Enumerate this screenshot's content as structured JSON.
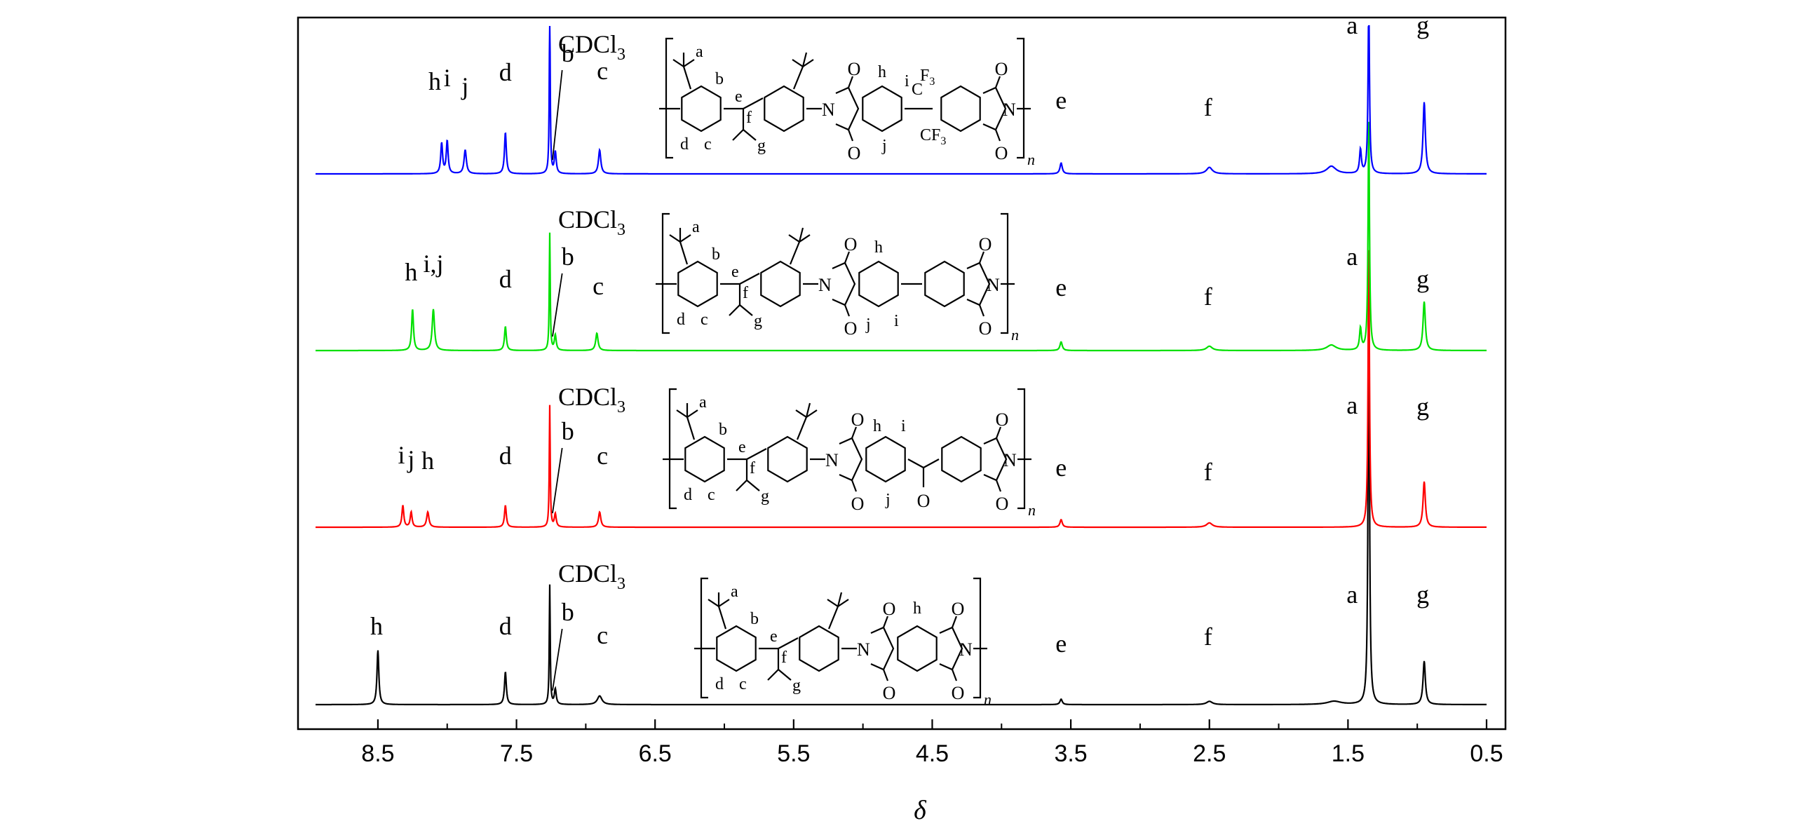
{
  "chart_data": {
    "type": "line",
    "xlabel": "δ",
    "xlim": [
      8.95,
      0.5
    ],
    "x_reversed": true,
    "xticks": [
      "8.5",
      "7.5",
      "6.5",
      "5.5",
      "4.5",
      "3.5",
      "2.5",
      "1.5",
      "0.5"
    ],
    "grid": false,
    "legend": "none",
    "series": [
      {
        "color": "#0000ff",
        "solvent_label": "CDCl",
        "solvent_sub": "3",
        "peaks": [
          {
            "x": 8.04,
            "h": 0.28,
            "w": 0.008
          },
          {
            "x": 8.0,
            "h": 0.3,
            "w": 0.008
          },
          {
            "x": 7.87,
            "h": 0.22,
            "w": 0.01
          },
          {
            "x": 7.58,
            "h": 0.38,
            "w": 0.008
          },
          {
            "x": 7.26,
            "h": 1.55,
            "w": 0.004
          },
          {
            "x": 7.22,
            "h": 0.2,
            "w": 0.008
          },
          {
            "x": 6.9,
            "h": 0.22,
            "w": 0.01
          },
          {
            "x": 3.57,
            "h": 0.1,
            "w": 0.01
          },
          {
            "x": 2.5,
            "h": 0.06,
            "w": 0.025
          },
          {
            "x": 1.62,
            "h": 0.07,
            "w": 0.04
          },
          {
            "x": 1.41,
            "h": 0.22,
            "w": 0.008
          },
          {
            "x": 1.35,
            "h": 1.6,
            "w": 0.006
          },
          {
            "x": 0.95,
            "h": 0.66,
            "w": 0.01
          }
        ],
        "labels": [
          {
            "t": "h",
            "x": 8.09,
            "dy": 75
          },
          {
            "t": "i",
            "x": 8.0,
            "dy": 80
          },
          {
            "t": "j",
            "x": 7.87,
            "dy": 68
          },
          {
            "t": "d",
            "x": 7.58,
            "dy": 88
          },
          {
            "t": "b",
            "x": 7.13,
            "dy": 115
          },
          {
            "t": "c",
            "x": 6.88,
            "dy": 90
          },
          {
            "t": "e",
            "x": 3.57,
            "dy": 48
          },
          {
            "t": "f",
            "x": 2.51,
            "dy": 38
          },
          {
            "t": "a",
            "x": 1.47,
            "dy": 155
          },
          {
            "t": "g",
            "x": 0.96,
            "dy": 155
          }
        ]
      },
      {
        "color": "#00e000",
        "solvent_label": "CDCl",
        "solvent_sub": "3",
        "peaks": [
          {
            "x": 8.25,
            "h": 0.38,
            "w": 0.008
          },
          {
            "x": 8.1,
            "h": 0.38,
            "w": 0.01
          },
          {
            "x": 7.58,
            "h": 0.22,
            "w": 0.008
          },
          {
            "x": 7.26,
            "h": 1.08,
            "w": 0.004
          },
          {
            "x": 7.22,
            "h": 0.14,
            "w": 0.008
          },
          {
            "x": 6.92,
            "h": 0.16,
            "w": 0.01
          },
          {
            "x": 3.57,
            "h": 0.08,
            "w": 0.01
          },
          {
            "x": 2.5,
            "h": 0.04,
            "w": 0.025
          },
          {
            "x": 1.62,
            "h": 0.05,
            "w": 0.04
          },
          {
            "x": 1.41,
            "h": 0.2,
            "w": 0.008
          },
          {
            "x": 1.35,
            "h": 2.1,
            "w": 0.006
          },
          {
            "x": 0.95,
            "h": 0.45,
            "w": 0.01
          }
        ],
        "labels": [
          {
            "t": "h",
            "x": 8.26,
            "dy": 55
          },
          {
            "t": "i,j",
            "x": 8.1,
            "dy": 67
          },
          {
            "t": "d",
            "x": 7.58,
            "dy": 45
          },
          {
            "t": "b",
            "x": 7.13,
            "dy": 77
          },
          {
            "t": "c",
            "x": 6.91,
            "dy": 35
          },
          {
            "t": "e",
            "x": 3.57,
            "dy": 33
          },
          {
            "t": "f",
            "x": 2.51,
            "dy": 20
          },
          {
            "t": "a",
            "x": 1.47,
            "dy": 77
          },
          {
            "t": "g",
            "x": 0.96,
            "dy": 45
          }
        ]
      },
      {
        "color": "#ff0000",
        "solvent_label": "CDCl",
        "solvent_sub": "3",
        "peaks": [
          {
            "x": 8.32,
            "h": 0.2,
            "w": 0.008
          },
          {
            "x": 8.26,
            "h": 0.14,
            "w": 0.008
          },
          {
            "x": 8.14,
            "h": 0.14,
            "w": 0.01
          },
          {
            "x": 7.58,
            "h": 0.2,
            "w": 0.008
          },
          {
            "x": 7.26,
            "h": 1.12,
            "w": 0.004
          },
          {
            "x": 7.22,
            "h": 0.12,
            "w": 0.008
          },
          {
            "x": 6.9,
            "h": 0.14,
            "w": 0.01
          },
          {
            "x": 3.57,
            "h": 0.07,
            "w": 0.01
          },
          {
            "x": 2.5,
            "h": 0.04,
            "w": 0.025
          },
          {
            "x": 1.35,
            "h": 2.55,
            "w": 0.006
          },
          {
            "x": 0.95,
            "h": 0.42,
            "w": 0.01
          }
        ],
        "labels": [
          {
            "t": "i",
            "x": 8.33,
            "dy": 46
          },
          {
            "t": "j",
            "x": 8.26,
            "dy": 40
          },
          {
            "t": "h",
            "x": 8.14,
            "dy": 38
          },
          {
            "t": "d",
            "x": 7.58,
            "dy": 45
          },
          {
            "t": "b",
            "x": 7.13,
            "dy": 80
          },
          {
            "t": "c",
            "x": 6.88,
            "dy": 45
          },
          {
            "t": "e",
            "x": 3.57,
            "dy": 28
          },
          {
            "t": "f",
            "x": 2.51,
            "dy": 22
          },
          {
            "t": "a",
            "x": 1.47,
            "dy": 117
          },
          {
            "t": "g",
            "x": 0.96,
            "dy": 115
          }
        ]
      },
      {
        "color": "#000000",
        "solvent_label": "CDCl",
        "solvent_sub": "3",
        "peaks": [
          {
            "x": 8.5,
            "h": 0.5,
            "w": 0.008
          },
          {
            "x": 7.58,
            "h": 0.3,
            "w": 0.008
          },
          {
            "x": 7.26,
            "h": 1.1,
            "w": 0.004
          },
          {
            "x": 7.22,
            "h": 0.14,
            "w": 0.008
          },
          {
            "x": 6.9,
            "h": 0.08,
            "w": 0.02
          },
          {
            "x": 3.57,
            "h": 0.05,
            "w": 0.01
          },
          {
            "x": 2.5,
            "h": 0.03,
            "w": 0.025
          },
          {
            "x": 1.6,
            "h": 0.03,
            "w": 0.06
          },
          {
            "x": 1.35,
            "h": 3.9,
            "w": 0.006
          },
          {
            "x": 0.95,
            "h": 0.4,
            "w": 0.01
          }
        ],
        "labels": [
          {
            "t": "h",
            "x": 8.51,
            "dy": 55
          },
          {
            "t": "d",
            "x": 7.58,
            "dy": 55
          },
          {
            "t": "b",
            "x": 7.13,
            "dy": 75
          },
          {
            "t": "c",
            "x": 6.88,
            "dy": 42
          },
          {
            "t": "e",
            "x": 3.57,
            "dy": 30
          },
          {
            "t": "f",
            "x": 2.51,
            "dy": 40
          },
          {
            "t": "a",
            "x": 1.47,
            "dy": 100
          },
          {
            "t": "g",
            "x": 0.96,
            "dy": 100
          }
        ]
      }
    ]
  },
  "structures": {
    "polymer_subscript": "n",
    "atom_N": "N",
    "atom_O": "O",
    "atom_C": "C",
    "atom_F3": "F",
    "atom_F3_sub": "3",
    "atom_CF": "CF",
    "diamine_labels": [
      "a",
      "b",
      "c",
      "d",
      "e",
      "f",
      "g"
    ],
    "s1_labels": [
      "h",
      "i",
      "j"
    ],
    "s2_labels": [
      "h",
      "i",
      "j"
    ],
    "s3_labels": [
      "h",
      "i",
      "j"
    ],
    "s4_labels": [
      "h"
    ]
  }
}
